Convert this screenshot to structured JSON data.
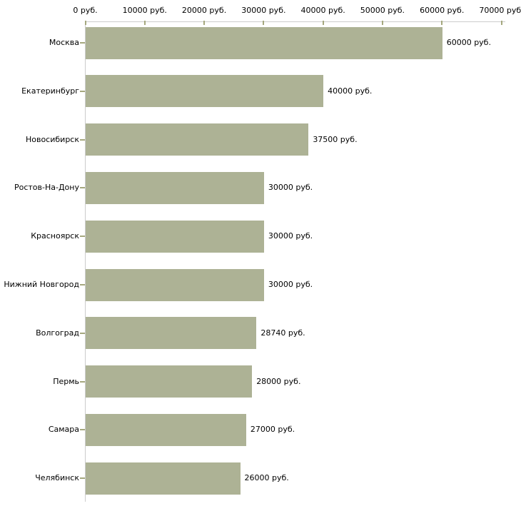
{
  "chart_data": {
    "type": "bar",
    "orientation": "horizontal",
    "title": "",
    "xlabel": "",
    "ylabel": "",
    "unit": "руб.",
    "categories": [
      "Москва",
      "Екатеринбург",
      "Новосибирск",
      "Ростов-На-Дону",
      "Красноярск",
      "Нижний Новгород",
      "Волгоград",
      "Пермь",
      "Самара",
      "Челябинск"
    ],
    "values": [
      60000,
      40000,
      37500,
      30000,
      30000,
      30000,
      28740,
      28000,
      27000,
      26000
    ],
    "value_labels": [
      "60000 руб.",
      "40000 руб.",
      "37500 руб.",
      "30000 руб.",
      "30000 руб.",
      "30000 руб.",
      "28740 руб.",
      "28000 руб.",
      "27000 руб.",
      "26000 руб."
    ],
    "x_ticks": [
      {
        "value": 0,
        "label": "0 руб."
      },
      {
        "value": 10000,
        "label": "10000 руб."
      },
      {
        "value": 20000,
        "label": "20000 руб."
      },
      {
        "value": 30000,
        "label": "30000 руб."
      },
      {
        "value": 40000,
        "label": "40000 руб."
      },
      {
        "value": 50000,
        "label": "50000 руб."
      },
      {
        "value": 60000,
        "label": "60000 руб."
      },
      {
        "value": 70000,
        "label": "70000 руб."
      }
    ],
    "xlim": [
      0,
      70000
    ],
    "grid": false,
    "legend": "none",
    "colors": {
      "bar": "#adb295",
      "axis_line": "#cccccc",
      "tick_mark": "#a5a87e",
      "text": "#000000",
      "background": "#ffffff"
    }
  }
}
